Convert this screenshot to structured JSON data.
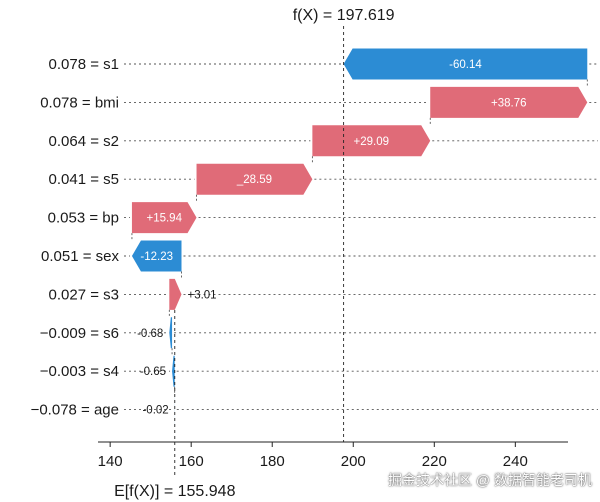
{
  "chart_data": {
    "type": "waterfall",
    "fx_label": "f(X) = 197.619",
    "base_label": "E[f(X)] = 155.948",
    "fx": 197.619,
    "base": 155.948,
    "xlim": [
      137,
      253
    ],
    "xticks": [
      140,
      160,
      180,
      200,
      220,
      240
    ],
    "features": [
      {
        "label": "0.078 = s1",
        "value": -60.14,
        "text": "-60.14"
      },
      {
        "label": "0.078 = bmi",
        "value": 38.76,
        "text": "+38.76"
      },
      {
        "label": "0.064 = s2",
        "value": 29.09,
        "text": "+29.09"
      },
      {
        "label": "0.041 = s5",
        "value": 28.59,
        "text": "_28.59"
      },
      {
        "label": "0.053 = bp",
        "value": 15.94,
        "text": "+15.94"
      },
      {
        "label": "0.051 = sex",
        "value": -12.23,
        "text": "-12.23"
      },
      {
        "label": "0.027 = s3",
        "value": 3.01,
        "text": "+3.01"
      },
      {
        "label": "−0.009 = s6",
        "value": -0.68,
        "text": "-0.68"
      },
      {
        "label": "−0.003 = s4",
        "value": -0.65,
        "text": "-0.65"
      },
      {
        "label": "−0.078 = age",
        "value": -0.02,
        "text": "-0.02"
      }
    ],
    "colors": {
      "positive": "#e06b78",
      "negative": "#2c8cd4"
    }
  },
  "watermark": "掘金技术社区 @ 数据智能老司机"
}
